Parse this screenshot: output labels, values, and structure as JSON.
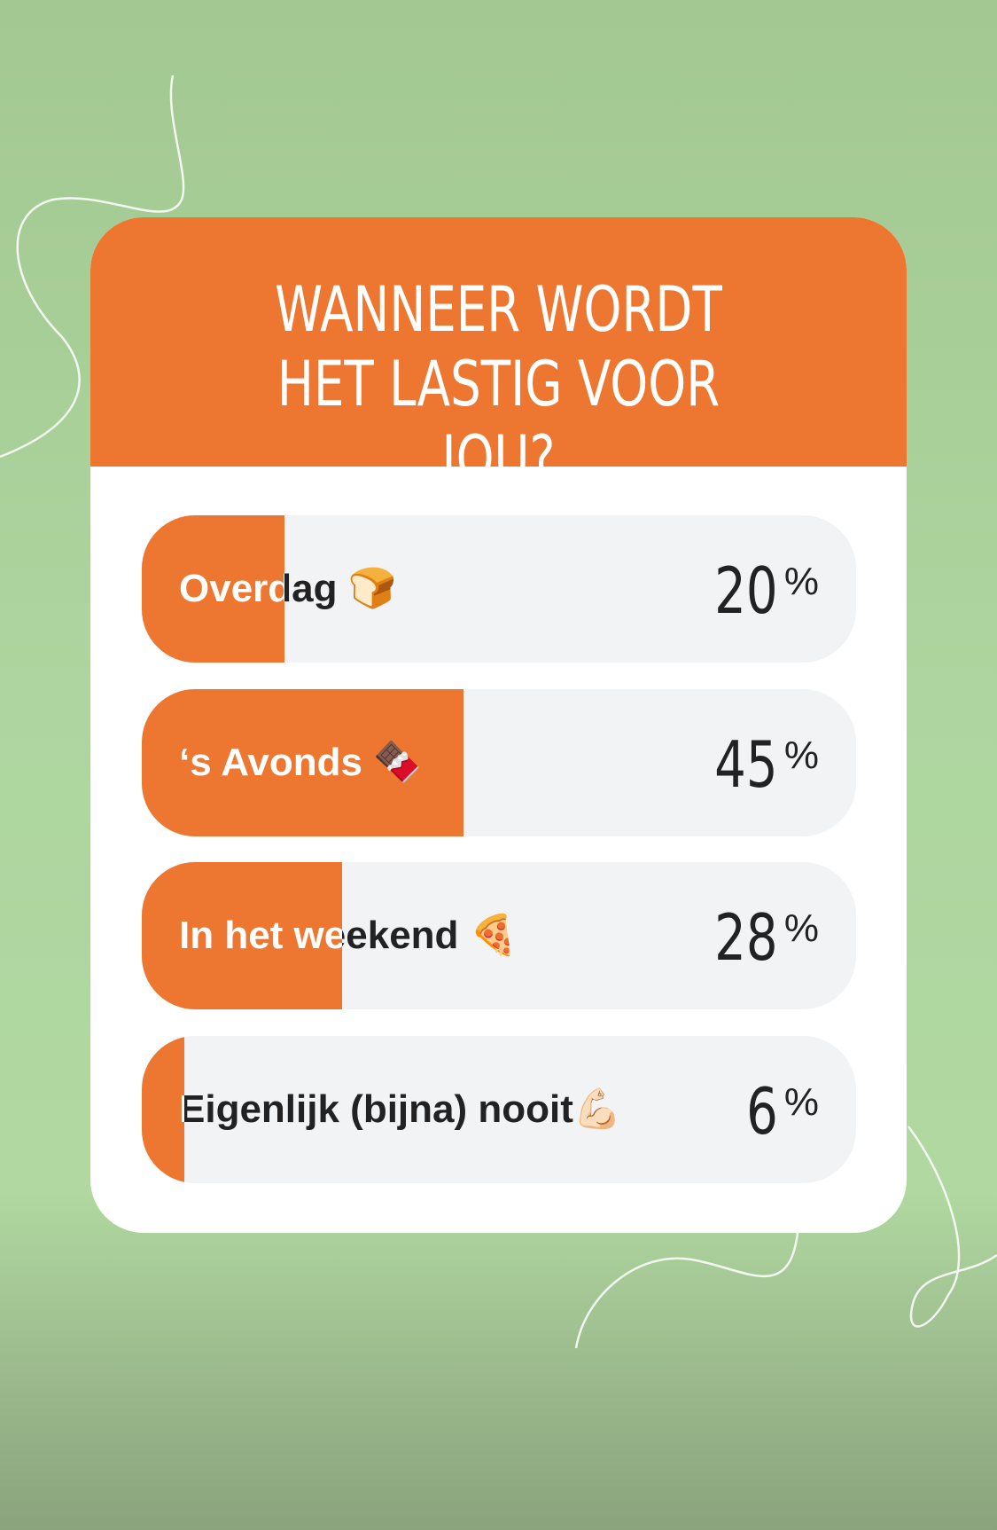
{
  "chart_data": {
    "type": "bar",
    "orientation": "horizontal",
    "title": "WANNEER WORDT HET LASTIG VOOR JOU?",
    "categories": [
      "Overdag 🍞",
      "‘s Avonds 🍫",
      "In het weekend 🍕",
      "Eigenlijk (bijna) nooit💪🏻"
    ],
    "values": [
      20,
      45,
      28,
      6
    ],
    "unit": "%",
    "xlim": [
      0,
      100
    ],
    "color": "#ED7731"
  }
}
